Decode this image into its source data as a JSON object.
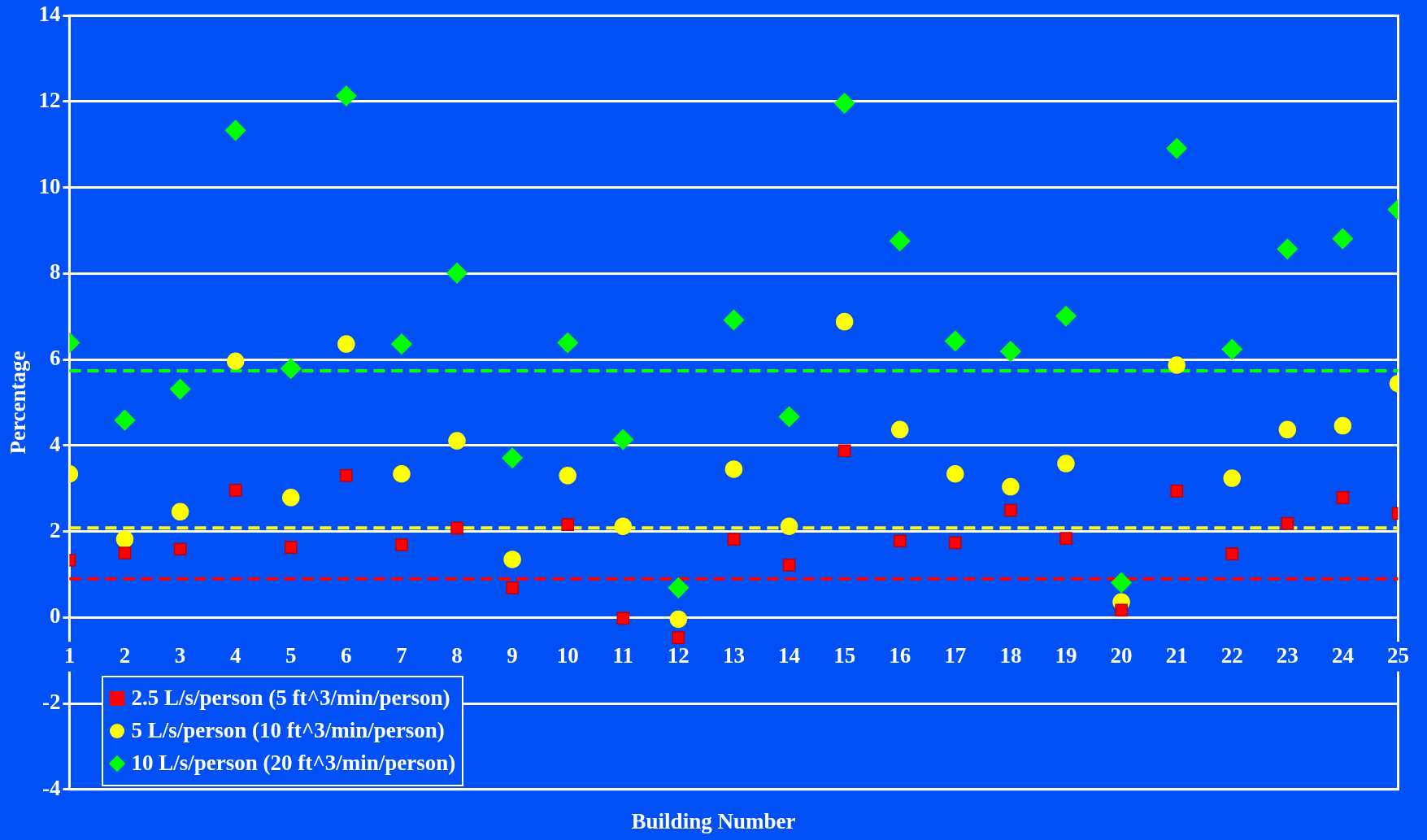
{
  "chart_data": {
    "type": "scatter",
    "xlabel": "Building Number",
    "ylabel": "Percentage",
    "x": [
      1,
      2,
      3,
      4,
      5,
      6,
      7,
      8,
      9,
      10,
      11,
      12,
      13,
      14,
      15,
      16,
      17,
      18,
      19,
      20,
      21,
      22,
      23,
      24,
      25
    ],
    "xlim": [
      1,
      25
    ],
    "xticks": [
      1,
      2,
      3,
      4,
      5,
      6,
      7,
      8,
      9,
      10,
      11,
      12,
      13,
      14,
      15,
      16,
      17,
      18,
      19,
      20,
      21,
      22,
      23,
      24,
      25
    ],
    "ylim": [
      -4,
      14
    ],
    "yticks": [
      -4,
      -2,
      0,
      2,
      4,
      6,
      8,
      10,
      12,
      14
    ],
    "grid": "y",
    "legend": "bottom left",
    "series": [
      {
        "name": "2.5 L/s/person (5 ft^3/min/person)",
        "color": "#ff0000",
        "marker": "square",
        "values": [
          1.33,
          1.5,
          1.59,
          2.96,
          1.63,
          3.3,
          1.69,
          2.08,
          0.69,
          2.16,
          -0.02,
          -0.47,
          1.82,
          1.22,
          3.88,
          1.78,
          1.74,
          2.49,
          1.84,
          0.17,
          2.94,
          1.48,
          2.19,
          2.79,
          2.42
        ]
      },
      {
        "name": "5 L/s/person (10 ft^3/min/person)",
        "color": "#ffff00",
        "marker": "circle",
        "values": [
          3.34,
          1.82,
          2.46,
          5.96,
          2.79,
          6.36,
          3.34,
          4.11,
          1.35,
          3.3,
          2.12,
          -0.04,
          3.45,
          2.12,
          6.88,
          4.37,
          3.34,
          3.04,
          3.58,
          0.36,
          5.87,
          3.24,
          4.37,
          4.46,
          5.44
        ]
      },
      {
        "name": "10 L/s/person (20 ft^3/min/person)",
        "color": "#00ff00",
        "marker": "diamond",
        "values": [
          6.39,
          4.59,
          5.31,
          11.33,
          5.79,
          12.13,
          6.36,
          8.01,
          3.71,
          6.39,
          4.14,
          0.69,
          6.92,
          4.67,
          11.96,
          8.76,
          6.43,
          6.19,
          7.01,
          0.81,
          10.91,
          6.24,
          8.57,
          8.81,
          9.49
        ]
      }
    ],
    "ref_lines": [
      {
        "axis": "y",
        "value": 5.74,
        "color": "#00ff00",
        "line_style": "dashed"
      },
      {
        "axis": "y",
        "value": 2.08,
        "color": "#ffff00",
        "line_style": "dashed"
      },
      {
        "axis": "y",
        "value": 0.9,
        "color": "#ff0000",
        "line_style": "dashed"
      }
    ]
  }
}
